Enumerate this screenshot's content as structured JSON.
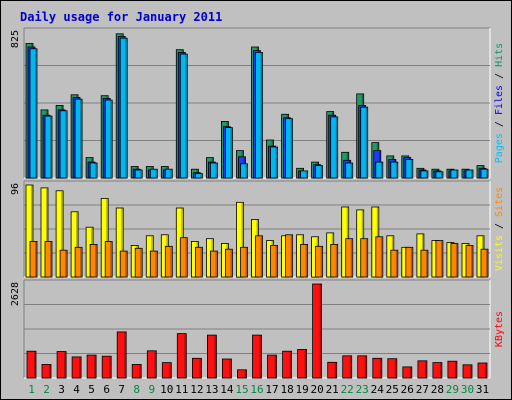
{
  "chart_data": {
    "type": "bar",
    "title": "Daily usage for January 2011",
    "categories": [
      "1",
      "2",
      "3",
      "4",
      "5",
      "6",
      "7",
      "8",
      "9",
      "10",
      "11",
      "12",
      "13",
      "14",
      "15",
      "16",
      "17",
      "18",
      "19",
      "20",
      "21",
      "22",
      "23",
      "24",
      "25",
      "26",
      "27",
      "28",
      "29",
      "30",
      "31"
    ],
    "weekend_days": [
      "1",
      "2",
      "8",
      "9",
      "15",
      "16",
      "22",
      "23",
      "29",
      "30"
    ],
    "panels": [
      {
        "id": "top",
        "ymax_label": "825",
        "ylim": [
          0,
          825
        ],
        "right_label": [
          {
            "text": "Pages",
            "color": "#00c0ff"
          },
          {
            "text": " / ",
            "color": "#000000"
          },
          {
            "text": "Files",
            "color": "#0000ff"
          },
          {
            "text": " / ",
            "color": "#000000"
          },
          {
            "text": "Hits",
            "color": "#009966"
          }
        ],
        "series": [
          {
            "name": "Hits",
            "color": "#229966",
            "values": [
              760,
              385,
              410,
              470,
              115,
              465,
              815,
              65,
              65,
              65,
              725,
              50,
              115,
              320,
              155,
              740,
              215,
              360,
              55,
              90,
              375,
              145,
              475,
              200,
              125,
              125,
              55,
              50,
              50,
              50,
              70
            ]
          },
          {
            "name": "Files",
            "color": "#1e3cff",
            "values": [
              740,
              355,
              385,
              455,
              90,
              450,
              800,
              50,
              45,
              45,
              710,
              30,
              90,
              290,
              120,
              720,
              180,
              340,
              40,
              75,
              355,
              100,
              410,
              155,
              105,
              115,
              45,
              40,
              40,
              40,
              55
            ]
          },
          {
            "name": "Pages",
            "color": "#00b8f0",
            "values": [
              730,
              350,
              380,
              445,
              85,
              440,
              790,
              45,
              50,
              50,
              700,
              25,
              85,
              285,
              80,
              710,
              175,
              335,
              40,
              70,
              345,
              85,
              400,
              90,
              90,
              105,
              40,
              35,
              45,
              45,
              50
            ]
          }
        ]
      },
      {
        "id": "middle",
        "ymax_label": "96",
        "ylim": [
          0,
          96
        ],
        "right_label": [
          {
            "text": "Visits",
            "color": "#ffff00"
          },
          {
            "text": " / ",
            "color": "#000000"
          },
          {
            "text": "Sites",
            "color": "#ff8800"
          }
        ],
        "series": [
          {
            "name": "Visits",
            "color": "#ffff00",
            "values": [
              96,
              93,
              90,
              68,
              52,
              82,
              72,
              33,
              43,
              44,
              72,
              37,
              40,
              35,
              78,
              60,
              38,
              43,
              44,
              42,
              46,
              73,
              70,
              73,
              43,
              31,
              45,
              38,
              36,
              35,
              43
            ]
          },
          {
            "name": "Sites",
            "color": "#ff8800",
            "values": [
              37,
              37,
              28,
              31,
              34,
              37,
              27,
              30,
              27,
              32,
              41,
              31,
              27,
              29,
              31,
              43,
              33,
              44,
              34,
              32,
              34,
              40,
              40,
              42,
              28,
              31,
              28,
              38,
              35,
              33,
              29
            ]
          }
        ]
      },
      {
        "id": "bottom",
        "ymax_label": "2628",
        "ylim": [
          0,
          2628
        ],
        "right_label": [
          {
            "text": "KBytes",
            "color": "#ff0000"
          }
        ],
        "series": [
          {
            "name": "KBytes",
            "color": "#ff1010",
            "values": [
              750,
              380,
              740,
              590,
              640,
              610,
              1290,
              380,
              760,
              430,
              1240,
              550,
              1200,
              530,
              230,
              1200,
              640,
              750,
              800,
              2628,
              440,
              620,
              620,
              550,
              540,
              310,
              480,
              430,
              470,
              370,
              420
            ]
          }
        ]
      }
    ],
    "colors": {
      "background": "#c0c0c0",
      "plot_background": "#c0c0c0",
      "title": "#0000cc",
      "grid": "#808080",
      "weekday_label": "#000000",
      "weekend_label": "#008844"
    },
    "grid": true,
    "legend_placement": "right, vertical"
  }
}
